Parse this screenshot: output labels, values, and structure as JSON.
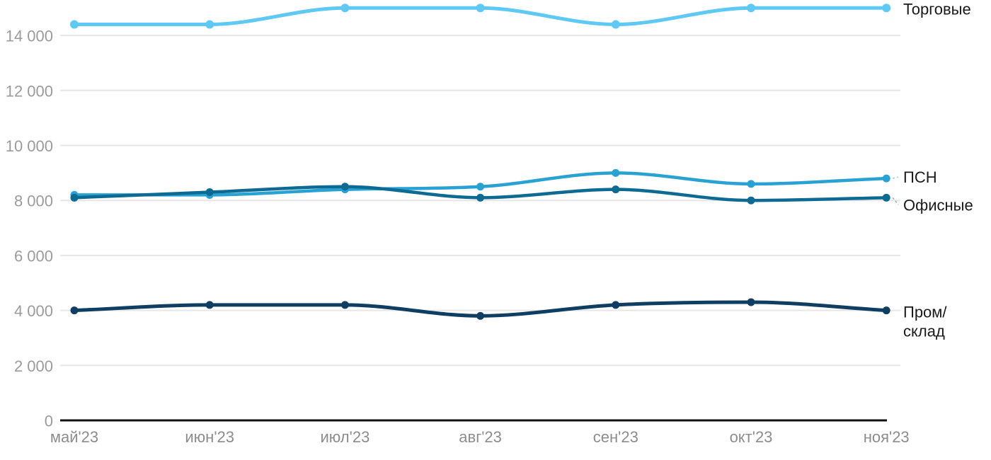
{
  "chart_data": {
    "type": "line",
    "title": "",
    "xlabel": "",
    "ylabel": "",
    "categories": [
      "май'23",
      "июн'23",
      "июл'23",
      "авг'23",
      "сен'23",
      "окт'23",
      "ноя'23"
    ],
    "series": [
      {
        "name": "Торговые",
        "color": "#5ec9f5",
        "values": [
          14400,
          14400,
          15000,
          15000,
          14400,
          15000,
          15000
        ]
      },
      {
        "name": "ПСН",
        "color": "#27a2d3",
        "values": [
          8200,
          8200,
          8400,
          8500,
          9000,
          8600,
          8800
        ]
      },
      {
        "name": "Офисные",
        "color": "#0d6a93",
        "values": [
          8100,
          8300,
          8500,
          8100,
          8400,
          8000,
          8100
        ]
      },
      {
        "name": "Пром/склад",
        "color": "#0f3e63",
        "label_lines": [
          "Пром/",
          "склад"
        ],
        "values": [
          4000,
          4200,
          4200,
          3800,
          4200,
          4300,
          4000
        ]
      }
    ],
    "y_ticks": [
      {
        "value": 0,
        "label": "0"
      },
      {
        "value": 2000,
        "label": "2 000"
      },
      {
        "value": 4000,
        "label": "4 000"
      },
      {
        "value": 6000,
        "label": "6 000"
      },
      {
        "value": 8000,
        "label": "8 000"
      },
      {
        "value": 10000,
        "label": "10 000"
      },
      {
        "value": 12000,
        "label": "12 000"
      },
      {
        "value": 14000,
        "label": "14 000"
      }
    ],
    "ylim": [
      0,
      15300
    ],
    "grid": "horizontal",
    "legend_position": "direct-labels-right",
    "colors": {
      "background": "#ffffff",
      "grid": "#e6e6e6",
      "axis": "#111111",
      "tick_label": "#9b9b9b",
      "x_label": "#8c8c8c",
      "series_label": "#1a1a1a"
    }
  }
}
